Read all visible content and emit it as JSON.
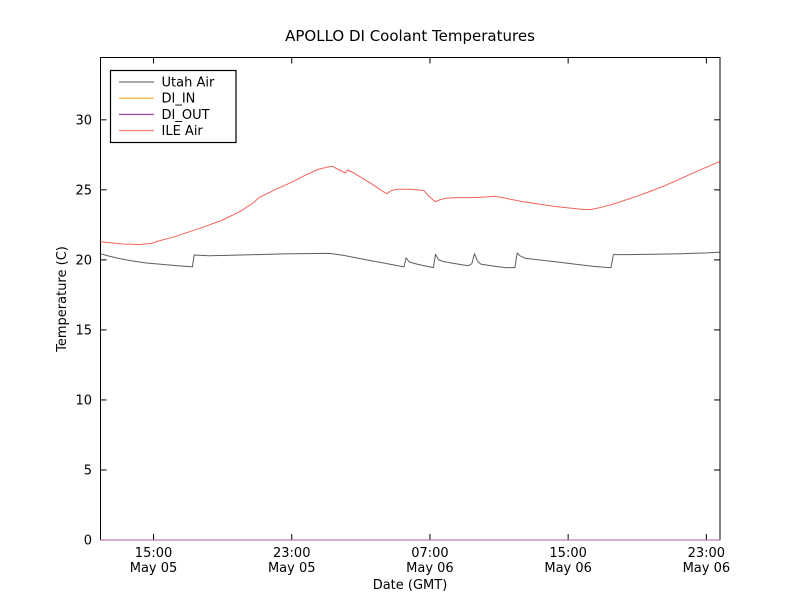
{
  "figure": {
    "background": "#ffffff",
    "frame_color": "#000000"
  },
  "chart_data": {
    "type": "line",
    "title": "APOLLO DI Coolant Temperatures",
    "xlabel": "Date (GMT)",
    "ylabel": "Temperature (C)",
    "grid": false,
    "legend_position": "upper left",
    "x_unit": "hours since May 05 00:00 GMT",
    "xlim": [
      11.93,
      47.79
    ],
    "ylim": [
      0,
      34.45
    ],
    "yticks": [
      0,
      5,
      10,
      15,
      20,
      25,
      30
    ],
    "xticks": [
      {
        "hour": 15,
        "time": "15:00",
        "date": "May 05"
      },
      {
        "hour": 23,
        "time": "23:00",
        "date": "May 05"
      },
      {
        "hour": 31,
        "time": "07:00",
        "date": "May 06"
      },
      {
        "hour": 39,
        "time": "15:00",
        "date": "May 06"
      },
      {
        "hour": 47,
        "time": "23:00",
        "date": "May 06"
      }
    ],
    "series": [
      {
        "name": "Utah Air",
        "color": "#4c4c4c",
        "legend_color": "#8c8c8c",
        "points": [
          [
            11.9,
            20.45
          ],
          [
            12.4,
            20.28
          ],
          [
            13.0,
            20.1
          ],
          [
            13.8,
            19.92
          ],
          [
            14.6,
            19.78
          ],
          [
            15.5,
            19.68
          ],
          [
            16.4,
            19.58
          ],
          [
            17.1,
            19.52
          ],
          [
            17.25,
            19.5
          ],
          [
            17.35,
            20.35
          ],
          [
            18.2,
            20.3
          ],
          [
            19.5,
            20.33
          ],
          [
            21.0,
            20.38
          ],
          [
            22.5,
            20.43
          ],
          [
            23.8,
            20.45
          ],
          [
            25.2,
            20.46
          ],
          [
            26.0,
            20.32
          ],
          [
            27.0,
            20.08
          ],
          [
            28.0,
            19.85
          ],
          [
            29.0,
            19.62
          ],
          [
            29.5,
            19.5
          ],
          [
            29.62,
            20.15
          ],
          [
            29.8,
            19.85
          ],
          [
            30.3,
            19.68
          ],
          [
            31.0,
            19.5
          ],
          [
            31.2,
            19.45
          ],
          [
            31.32,
            20.4
          ],
          [
            31.5,
            20.0
          ],
          [
            31.8,
            19.88
          ],
          [
            32.5,
            19.72
          ],
          [
            33.2,
            19.58
          ],
          [
            33.42,
            19.72
          ],
          [
            33.58,
            20.45
          ],
          [
            33.75,
            19.9
          ],
          [
            33.95,
            19.7
          ],
          [
            34.6,
            19.57
          ],
          [
            35.4,
            19.44
          ],
          [
            35.92,
            19.45
          ],
          [
            36.05,
            20.5
          ],
          [
            36.2,
            20.3
          ],
          [
            36.5,
            20.12
          ],
          [
            37.5,
            19.97
          ],
          [
            38.5,
            19.83
          ],
          [
            39.5,
            19.68
          ],
          [
            40.4,
            19.55
          ],
          [
            41.2,
            19.46
          ],
          [
            41.48,
            19.45
          ],
          [
            41.62,
            20.38
          ],
          [
            42.5,
            20.38
          ],
          [
            44.0,
            20.4
          ],
          [
            45.5,
            20.44
          ],
          [
            47.0,
            20.5
          ],
          [
            47.75,
            20.55
          ]
        ]
      },
      {
        "name": "DI_IN",
        "color": "#fdbb4f",
        "legend_color": "#fdbb4f",
        "points": [
          [
            11.93,
            0
          ],
          [
            47.79,
            0
          ]
        ]
      },
      {
        "name": "DI_OUT",
        "color": "#a352a8",
        "legend_color": "#a352a8",
        "points": [
          [
            11.93,
            0
          ],
          [
            47.79,
            0
          ]
        ]
      },
      {
        "name": "ILE Air",
        "color": "#f4524b",
        "legend_color": "#f88379",
        "points": [
          [
            11.9,
            21.3
          ],
          [
            12.5,
            21.22
          ],
          [
            13.3,
            21.13
          ],
          [
            14.2,
            21.1
          ],
          [
            14.9,
            21.18
          ],
          [
            15.2,
            21.32
          ],
          [
            15.5,
            21.42
          ],
          [
            16.2,
            21.65
          ],
          [
            17.0,
            21.98
          ],
          [
            18.0,
            22.4
          ],
          [
            19.0,
            22.85
          ],
          [
            20.0,
            23.45
          ],
          [
            20.8,
            24.1
          ],
          [
            21.1,
            24.45
          ],
          [
            22.0,
            25.0
          ],
          [
            23.0,
            25.55
          ],
          [
            23.8,
            26.05
          ],
          [
            24.5,
            26.45
          ],
          [
            25.0,
            26.6
          ],
          [
            25.35,
            26.68
          ],
          [
            25.7,
            26.45
          ],
          [
            26.1,
            26.2
          ],
          [
            26.22,
            26.42
          ],
          [
            26.45,
            26.3
          ],
          [
            27.0,
            25.9
          ],
          [
            27.6,
            25.45
          ],
          [
            28.2,
            24.95
          ],
          [
            28.5,
            24.72
          ],
          [
            28.75,
            24.95
          ],
          [
            29.1,
            25.05
          ],
          [
            29.9,
            25.05
          ],
          [
            30.3,
            25.0
          ],
          [
            30.65,
            24.95
          ],
          [
            30.9,
            24.6
          ],
          [
            31.3,
            24.15
          ],
          [
            31.55,
            24.28
          ],
          [
            31.9,
            24.4
          ],
          [
            32.6,
            24.45
          ],
          [
            33.6,
            24.45
          ],
          [
            34.3,
            24.5
          ],
          [
            34.7,
            24.55
          ],
          [
            35.2,
            24.45
          ],
          [
            36.2,
            24.2
          ],
          [
            37.2,
            24.0
          ],
          [
            38.2,
            23.82
          ],
          [
            39.2,
            23.68
          ],
          [
            39.9,
            23.6
          ],
          [
            40.3,
            23.6
          ],
          [
            40.8,
            23.72
          ],
          [
            41.6,
            23.98
          ],
          [
            42.6,
            24.38
          ],
          [
            43.6,
            24.82
          ],
          [
            44.6,
            25.3
          ],
          [
            45.6,
            25.85
          ],
          [
            46.6,
            26.4
          ],
          [
            47.75,
            27.0
          ]
        ]
      }
    ]
  }
}
